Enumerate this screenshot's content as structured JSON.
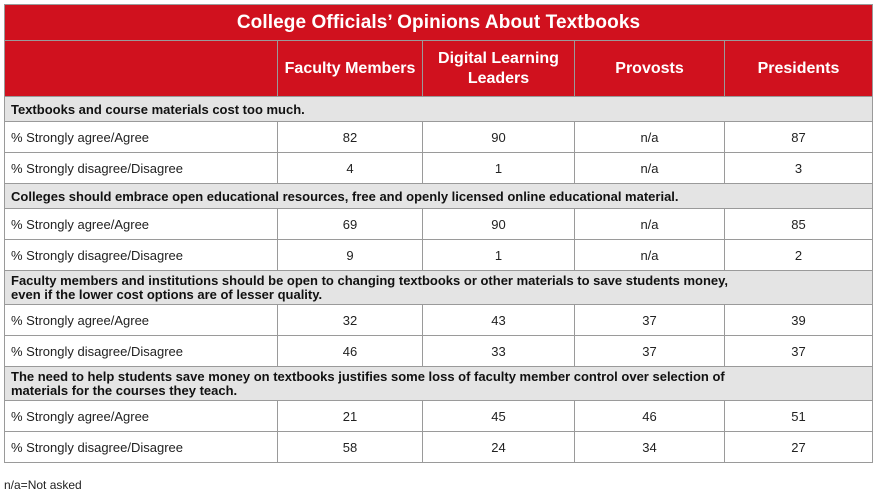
{
  "title": "College Officials’ Opinions About Textbooks",
  "columns": [
    "Faculty Members",
    "Digital Learning Leaders",
    "Provosts",
    "Presidents"
  ],
  "sections": [
    {
      "statement": "Textbooks and course materials cost too much.",
      "rows": [
        {
          "label": "% Strongly agree/Agree",
          "values": [
            "82",
            "90",
            "n/a",
            "87"
          ]
        },
        {
          "label": "% Strongly disagree/Disagree",
          "values": [
            "4",
            "1",
            "n/a",
            "3"
          ]
        }
      ]
    },
    {
      "statement": "Colleges should embrace open educational resources, free and openly licensed online educational material.",
      "rows": [
        {
          "label": "% Strongly agree/Agree",
          "values": [
            "69",
            "90",
            "n/a",
            "85"
          ]
        },
        {
          "label": "% Strongly disagree/Disagree",
          "values": [
            "9",
            "1",
            "n/a",
            "2"
          ]
        }
      ]
    },
    {
      "statement": "Faculty members and institutions should be open to changing textbooks or other materials to save students money, even if the lower cost options are of lesser quality.",
      "rows": [
        {
          "label": "% Strongly agree/Agree",
          "values": [
            "32",
            "43",
            "37",
            "39"
          ]
        },
        {
          "label": "% Strongly disagree/Disagree",
          "values": [
            "46",
            "33",
            "37",
            "37"
          ]
        }
      ]
    },
    {
      "statement": "The need to help students save money on textbooks justifies some loss of faculty member control over selection of materials for the courses they teach.",
      "rows": [
        {
          "label": "% Strongly agree/Agree",
          "values": [
            "21",
            "45",
            "46",
            "51"
          ]
        },
        {
          "label": "% Strongly disagree/Disagree",
          "values": [
            "58",
            "24",
            "34",
            "27"
          ]
        }
      ]
    }
  ],
  "footnote": "n/a=Not asked",
  "chart_data": {
    "type": "table",
    "title": "College Officials’ Opinions About Textbooks",
    "columns": [
      "Faculty Members",
      "Digital Learning Leaders",
      "Provosts",
      "Presidents"
    ],
    "rows": [
      {
        "statement": "Textbooks and course materials cost too much.",
        "label": "% Strongly agree/Agree",
        "values": [
          82,
          90,
          null,
          87
        ]
      },
      {
        "statement": "Textbooks and course materials cost too much.",
        "label": "% Strongly disagree/Disagree",
        "values": [
          4,
          1,
          null,
          3
        ]
      },
      {
        "statement": "Colleges should embrace open educational resources, free and openly licensed online educational material.",
        "label": "% Strongly agree/Agree",
        "values": [
          69,
          90,
          null,
          85
        ]
      },
      {
        "statement": "Colleges should embrace open educational resources, free and openly licensed online educational material.",
        "label": "% Strongly disagree/Disagree",
        "values": [
          9,
          1,
          null,
          2
        ]
      },
      {
        "statement": "Faculty members and institutions should be open to changing textbooks or other materials to save students money, even if the lower cost options are of lesser quality.",
        "label": "% Strongly agree/Agree",
        "values": [
          32,
          43,
          37,
          39
        ]
      },
      {
        "statement": "Faculty members and institutions should be open to changing textbooks or other materials to save students money, even if the lower cost options are of lesser quality.",
        "label": "% Strongly disagree/Disagree",
        "values": [
          46,
          33,
          37,
          37
        ]
      },
      {
        "statement": "The need to help students save money on textbooks justifies some loss of faculty member control over selection of materials for the courses they teach.",
        "label": "% Strongly agree/Agree",
        "values": [
          21,
          45,
          46,
          51
        ]
      },
      {
        "statement": "The need to help students save money on textbooks justifies some loss of faculty member control over selection of materials for the courses they teach.",
        "label": "% Strongly disagree/Disagree",
        "values": [
          58,
          24,
          34,
          27
        ]
      }
    ],
    "colors": {
      "header": "#d0111e",
      "section": "#e4e4e4"
    }
  }
}
